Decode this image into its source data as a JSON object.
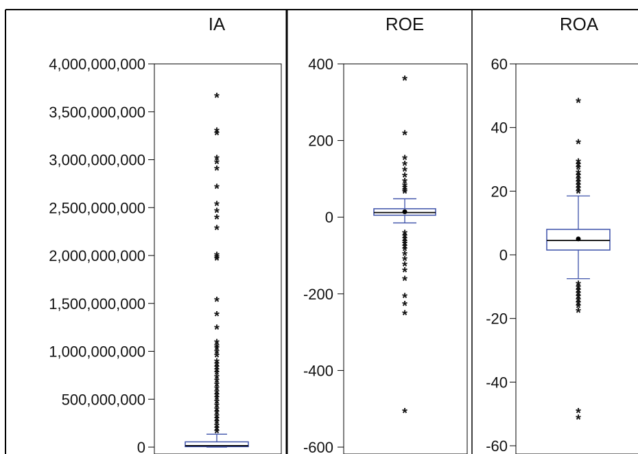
{
  "chart_data": [
    {
      "type": "boxplot",
      "title": "IA",
      "ylim": [
        0,
        4000000000
      ],
      "yticks": [
        0,
        500000000,
        1000000000,
        1500000000,
        2000000000,
        2500000000,
        3000000000,
        3500000000,
        4000000000
      ],
      "ytick_labels": [
        "0",
        "500,000,000",
        "1,000,000,000",
        "1,500,000,000",
        "2,000,000,000",
        "2,500,000,000",
        "3,000,000,000",
        "3,500,000,000",
        "4,000,000,000"
      ],
      "box": {
        "q1": 5000000,
        "median": 15000000,
        "q3": 55000000,
        "whisker_low": 0,
        "whisker_high": 135000000,
        "mean": null
      },
      "outliers": [
        3670000000,
        3310000000,
        3280000000,
        3020000000,
        2980000000,
        2910000000,
        2720000000,
        2540000000,
        2470000000,
        2400000000,
        2290000000,
        2010000000,
        1990000000,
        1970000000,
        1540000000,
        1390000000,
        1250000000,
        1100000000,
        1060000000,
        1040000000,
        1000000000,
        960000000,
        900000000,
        870000000,
        840000000,
        810000000,
        780000000,
        740000000,
        700000000,
        660000000,
        620000000,
        580000000,
        550000000,
        520000000,
        480000000,
        440000000,
        400000000,
        370000000,
        330000000,
        300000000,
        270000000,
        230000000,
        200000000,
        170000000
      ]
    },
    {
      "type": "boxplot",
      "title": "ROE",
      "ylim": [
        -600,
        400
      ],
      "yticks": [
        -600,
        -400,
        -200,
        0,
        200,
        400
      ],
      "ytick_labels": [
        "-600",
        "-400",
        "-200",
        "0",
        "200",
        "400"
      ],
      "box": {
        "q1": 5,
        "median": 12,
        "q3": 22,
        "whisker_low": -15,
        "whisker_high": 48,
        "mean": 14
      },
      "outliers": [
        362,
        220,
        155,
        140,
        125,
        110,
        95,
        85,
        78,
        72,
        68,
        -40,
        -48,
        -55,
        -62,
        -68,
        -75,
        -82,
        -95,
        -108,
        -122,
        -138,
        -160,
        -205,
        -225,
        -250,
        -505
      ]
    },
    {
      "type": "boxplot",
      "title": "ROA",
      "ylim": [
        -60,
        60
      ],
      "yticks": [
        -60,
        -40,
        -20,
        0,
        20,
        40,
        60
      ],
      "ytick_labels": [
        "-60",
        "-40",
        "-20",
        "0",
        "20",
        "40",
        "60"
      ],
      "box": {
        "q1": 1.5,
        "median": 4.5,
        "q3": 8,
        "whisker_low": -7.5,
        "whisker_high": 18.5,
        "mean": 5
      },
      "outliers": [
        48.5,
        35.5,
        29.5,
        28.5,
        27.5,
        26,
        25,
        24,
        23,
        22,
        21,
        20,
        -9,
        -10,
        -11,
        -12,
        -13,
        -14,
        -15,
        -16,
        -17.5,
        -49,
        -51
      ]
    }
  ]
}
